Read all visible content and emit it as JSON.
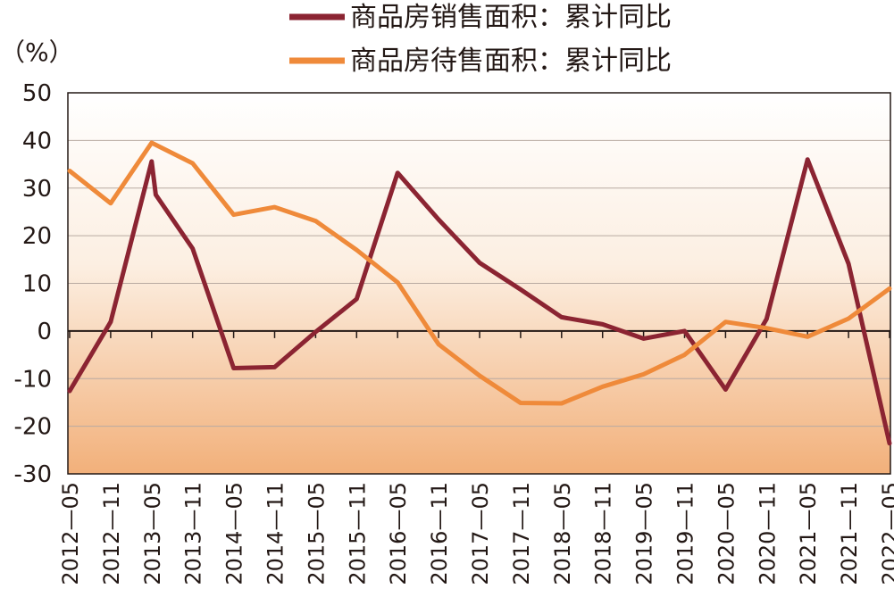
{
  "chart_data": {
    "type": "line",
    "unit_label": "（%）",
    "ylim": [
      -30,
      50
    ],
    "y_ticks": [
      "50",
      "40",
      "30",
      "20",
      "10",
      "0",
      "-10",
      "-20",
      "-30"
    ],
    "categories": [
      "2012—05",
      "2012—11",
      "2013—05",
      "2013—11",
      "2014—05",
      "2014—11",
      "2015—05",
      "2015—11",
      "2016—05",
      "2016—11",
      "2017—05",
      "2017—11",
      "2018—05",
      "2018—11",
      "2019—05",
      "2019—11",
      "2020—05",
      "2020—11",
      "2021—05",
      "2021—11",
      "2022—05"
    ],
    "series": [
      {
        "name": "商品房销售面积：累计同比",
        "color": "#8b2432",
        "points": [
          {
            "x": 0,
            "y": -12.6
          },
          {
            "x": 1,
            "y": 1.9
          },
          {
            "x": 2,
            "y": 35.6
          },
          {
            "x": 2.1,
            "y": 28.6
          },
          {
            "x": 3,
            "y": 17.3
          },
          {
            "x": 4,
            "y": -7.8
          },
          {
            "x": 5,
            "y": -7.6
          },
          {
            "x": 6,
            "y": -0.2
          },
          {
            "x": 7,
            "y": 6.7
          },
          {
            "x": 8,
            "y": 33.2
          },
          {
            "x": 9,
            "y": 23.4
          },
          {
            "x": 10,
            "y": 14.3
          },
          {
            "x": 11,
            "y": 8.7
          },
          {
            "x": 12,
            "y": 2.9
          },
          {
            "x": 13,
            "y": 1.4
          },
          {
            "x": 14,
            "y": -1.6
          },
          {
            "x": 15,
            "y": 0.0
          },
          {
            "x": 16,
            "y": -12.3
          },
          {
            "x": 17,
            "y": 2.5
          },
          {
            "x": 18,
            "y": 36.0
          },
          {
            "x": 19,
            "y": 14.1
          },
          {
            "x": 20,
            "y": -23.6
          }
        ]
      },
      {
        "name": "商品房待售面积：累计同比",
        "color": "#ef8a3a",
        "points": [
          {
            "x": 0,
            "y": 33.6
          },
          {
            "x": 1,
            "y": 26.8
          },
          {
            "x": 2,
            "y": 39.5
          },
          {
            "x": 3,
            "y": 35.2
          },
          {
            "x": 4,
            "y": 24.4
          },
          {
            "x": 5,
            "y": 26.0
          },
          {
            "x": 6,
            "y": 23.1
          },
          {
            "x": 7,
            "y": 17.0
          },
          {
            "x": 8,
            "y": 10.2
          },
          {
            "x": 9,
            "y": -2.8
          },
          {
            "x": 10,
            "y": -9.4
          },
          {
            "x": 11,
            "y": -15.1
          },
          {
            "x": 12,
            "y": -15.2
          },
          {
            "x": 13,
            "y": -11.7
          },
          {
            "x": 14,
            "y": -9.1
          },
          {
            "x": 15,
            "y": -5.0
          },
          {
            "x": 16,
            "y": 1.9
          },
          {
            "x": 17,
            "y": 0.6
          },
          {
            "x": 18,
            "y": -1.2
          },
          {
            "x": 19,
            "y": 2.6
          },
          {
            "x": 20,
            "y": 8.9
          }
        ]
      }
    ],
    "grid": true,
    "legend_position": "top"
  }
}
